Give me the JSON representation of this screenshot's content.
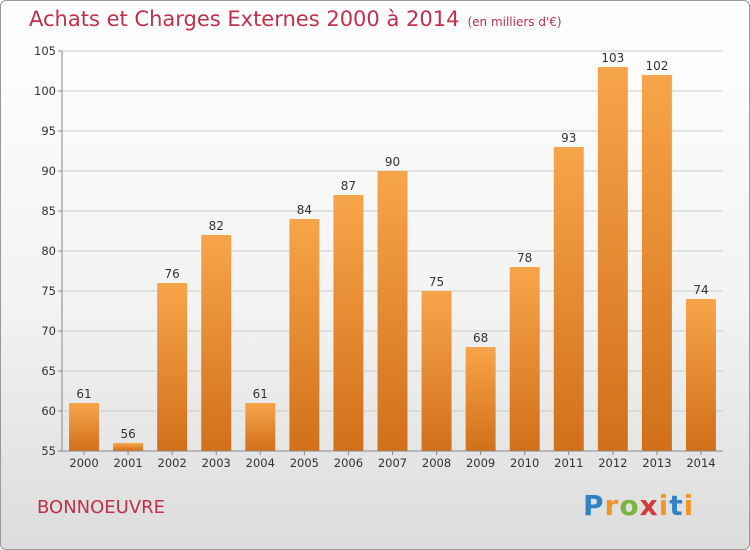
{
  "header": {
    "title": "Achats et Charges Externes 2000 à 2014",
    "subtitle": "(en milliers d'€)"
  },
  "footer": {
    "commune": "BONNOEUVRE",
    "logo": [
      "P",
      "r",
      "o",
      "x",
      "i",
      "t",
      "i"
    ]
  },
  "chart_data": {
    "type": "bar",
    "title": "Achats et Charges Externes 2000 à 2014",
    "subtitle": "(en milliers d'€)",
    "xlabel": "",
    "ylabel": "",
    "categories": [
      "2000",
      "2001",
      "2002",
      "2003",
      "2004",
      "2005",
      "2006",
      "2007",
      "2008",
      "2009",
      "2010",
      "2011",
      "2012",
      "2013",
      "2014"
    ],
    "values": [
      61,
      56,
      76,
      82,
      61,
      84,
      87,
      90,
      75,
      68,
      78,
      93,
      103,
      102,
      74
    ],
    "ylim": [
      55,
      105
    ],
    "yticks": [
      55,
      60,
      65,
      70,
      75,
      80,
      85,
      90,
      95,
      100,
      105
    ],
    "grid": true,
    "colors": {
      "bar_top": "#f7a54a",
      "bar_bottom": "#d2701a",
      "grid": "#cccccc"
    }
  }
}
